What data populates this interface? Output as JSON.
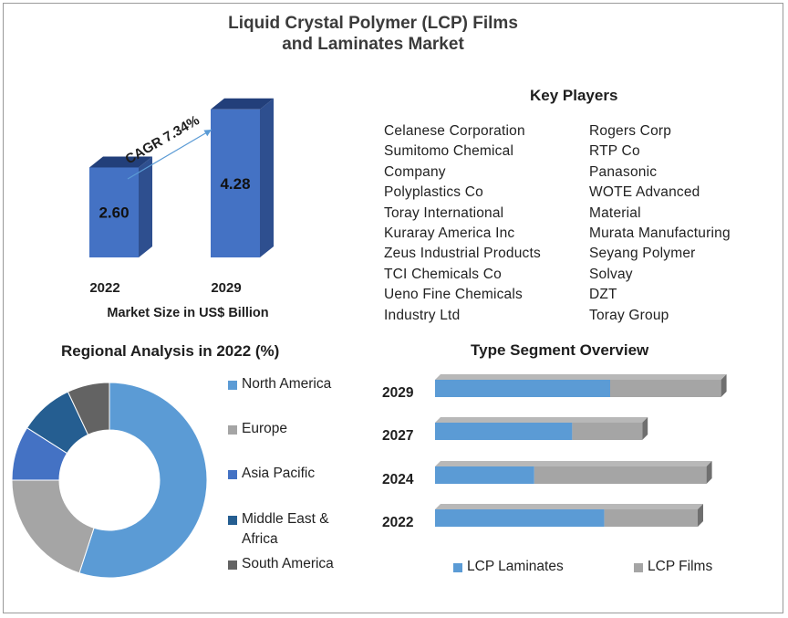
{
  "title": {
    "line1": "Liquid Crystal Polymer (LCP) Films",
    "line2": "and Laminates Market"
  },
  "colors": {
    "bar_front": "#4472c4",
    "bar_side": "#2e4f8f",
    "bar_top": "#223f7a",
    "north_america": "#5b9bd5",
    "europe": "#a5a5a5",
    "asia_pacific": "#4472c4",
    "middle_east_africa": "#255e91",
    "south_america": "#636363",
    "lcp_laminates": "#5b9bd5",
    "lcp_films": "#a5a5a5"
  },
  "market_size": {
    "cagr_label": "CAGR 7.34%",
    "axis_label": "Market Size in US$ Billion"
  },
  "key_players": {
    "heading": "Key Players",
    "col1": [
      "Celanese Corporation",
      "Sumitomo  Chemical",
      "Company",
      "Polyplastics Co",
      "Toray International",
      "Kuraray America Inc",
      "Zeus Industrial Products",
      "TCI Chemicals Co",
      "Ueno Fine Chemicals",
      "Industry  Ltd"
    ],
    "col2": [
      "Rogers Corp",
      "RTP Co",
      "Panasonic",
      "WOTE Advanced",
      "Material",
      "Murata Manufacturing",
      "Seyang Polymer",
      "Solvay",
      "DZT",
      "Toray Group"
    ]
  },
  "regional": {
    "heading": "Regional Analysis in 2022 (%)",
    "legend": {
      "north_america": "North America",
      "europe": "Europe",
      "asia_pacific": "Asia Pacific",
      "middle_east_line1": "Middle East &",
      "middle_east_line2": "Africa",
      "south_america": "South America"
    }
  },
  "segment": {
    "heading": "Type  Segment Overview",
    "legend": {
      "laminates": "LCP Laminates",
      "films": "LCP Films"
    }
  },
  "chart_data": [
    {
      "type": "bar",
      "categories": [
        "2022",
        "2029"
      ],
      "values": [
        2.6,
        4.28
      ],
      "value_labels": [
        "2.60",
        "4.28"
      ],
      "annotation": "CAGR 7.34%",
      "xlabel": "Market Size in US$ Billion",
      "ylabel": "",
      "style": "3d"
    },
    {
      "type": "pie",
      "donut": true,
      "title": "Regional Analysis in 2022 (%)",
      "labels": [
        "North America",
        "Europe",
        "Asia Pacific",
        "Middle East & Africa",
        "South America"
      ],
      "values": [
        55,
        20,
        9,
        9,
        7
      ],
      "legend": "right"
    },
    {
      "type": "bar",
      "orientation": "horizontal",
      "stacked": true,
      "title": "Type  Segment Overview",
      "categories": [
        "2029",
        "2027",
        "2024",
        "2022"
      ],
      "series": [
        {
          "name": "LCP Laminates",
          "values": [
            60,
            47,
            34,
            58
          ]
        },
        {
          "name": "LCP Films",
          "values": [
            38,
            24,
            59,
            32
          ]
        }
      ],
      "legend": "bottom"
    }
  ]
}
